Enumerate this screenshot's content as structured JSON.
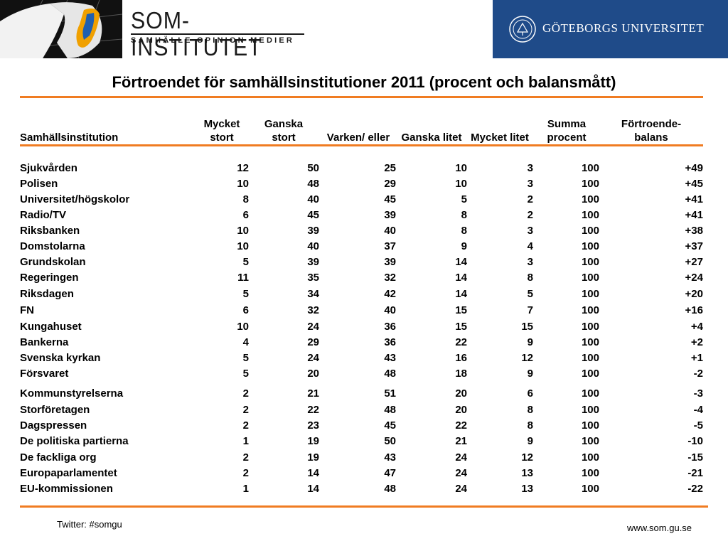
{
  "header": {
    "logo_title": "SOM-INSTITUTET",
    "logo_subtitle": "SAMHÄLLE   OPINION   MEDIER",
    "university_name": "GÖTEBORGS UNIVERSITET",
    "banner_color": "#1f4b89",
    "accent_color": "#f07c22"
  },
  "title": "Förtroendet för samhällsinstitutioner 2011 (procent och balansmått)",
  "table": {
    "columns": [
      {
        "line1": "",
        "line2": "Samhällsinstitution"
      },
      {
        "line1": "Mycket",
        "line2": "stort"
      },
      {
        "line1": "Ganska",
        "line2": "stort"
      },
      {
        "line1": "",
        "line2": "Varken/ eller"
      },
      {
        "line1": "",
        "line2": "Ganska litet"
      },
      {
        "line1": "",
        "line2": "Mycket litet"
      },
      {
        "line1": "Summa",
        "line2": "procent"
      },
      {
        "line1": "Förtroende-",
        "line2": "balans"
      }
    ],
    "rows": [
      [
        "Sjukvården",
        "12",
        "50",
        "25",
        "10",
        "3",
        "100",
        "+49"
      ],
      [
        "Polisen",
        "10",
        "48",
        "29",
        "10",
        "3",
        "100",
        "+45"
      ],
      [
        "Universitet/högskolor",
        "8",
        "40",
        "45",
        "5",
        "2",
        "100",
        "+41"
      ],
      [
        "Radio/TV",
        "6",
        "45",
        "39",
        "8",
        "2",
        "100",
        "+41"
      ],
      [
        "Riksbanken",
        "10",
        "39",
        "40",
        "8",
        "3",
        "100",
        "+38"
      ],
      [
        "Domstolarna",
        "10",
        "40",
        "37",
        "9",
        "4",
        "100",
        "+37"
      ],
      [
        "Grundskolan",
        "5",
        "39",
        "39",
        "14",
        "3",
        "100",
        "+27"
      ],
      [
        "Regeringen",
        "11",
        "35",
        "32",
        "14",
        "8",
        "100",
        "+24"
      ],
      [
        "Riksdagen",
        "5",
        "34",
        "42",
        "14",
        "5",
        "100",
        "+20"
      ],
      [
        "FN",
        "6",
        "32",
        "40",
        "15",
        "7",
        "100",
        "+16"
      ],
      [
        "Kungahuset",
        "10",
        "24",
        "36",
        "15",
        "15",
        "100",
        "+4"
      ],
      [
        "Bankerna",
        "4",
        "29",
        "36",
        "22",
        "9",
        "100",
        "+2"
      ],
      [
        "Svenska kyrkan",
        "5",
        "24",
        "43",
        "16",
        "12",
        "100",
        "+1"
      ],
      [
        "Försvaret",
        "5",
        "20",
        "48",
        "18",
        "9",
        "100",
        "-2"
      ],
      [
        "Kommunstyrelserna",
        "2",
        "21",
        "51",
        "20",
        "6",
        "100",
        "-3"
      ],
      [
        "Storföretagen",
        "2",
        "22",
        "48",
        "20",
        "8",
        "100",
        "-4"
      ],
      [
        "Dagspressen",
        "2",
        "23",
        "45",
        "22",
        "8",
        "100",
        "-5"
      ],
      [
        "De politiska partierna",
        "1",
        "19",
        "50",
        "21",
        "9",
        "100",
        "-10"
      ],
      [
        "De fackliga org",
        "2",
        "19",
        "43",
        "24",
        "12",
        "100",
        "-15"
      ],
      [
        "Europaparlamentet",
        "2",
        "14",
        "47",
        "24",
        "13",
        "100",
        "-21"
      ],
      [
        "EU-kommissionen",
        "1",
        "14",
        "48",
        "24",
        "13",
        "100",
        "-22"
      ]
    ]
  },
  "footer": {
    "twitter": "Twitter: #somgu",
    "website": "www.som.gu.se"
  }
}
